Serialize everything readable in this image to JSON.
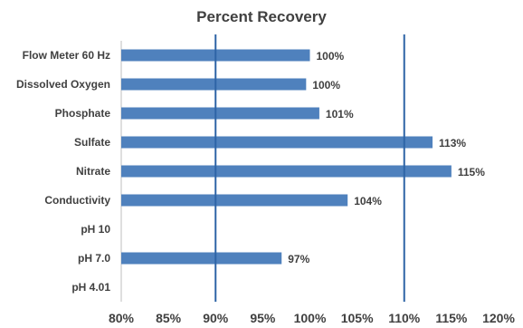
{
  "chart_data": {
    "type": "bar",
    "orientation": "horizontal",
    "title": "Percent Recovery",
    "categories": [
      "Flow Meter 60 Hz",
      "Dissolved Oxygen",
      "Phosphate",
      "Sulfate",
      "Nitrate",
      "Conductivity",
      "pH 10",
      "pH 7.0",
      "pH 4.01"
    ],
    "values": [
      100,
      99.6,
      101,
      113,
      115,
      104,
      null,
      97,
      null
    ],
    "data_labels": [
      "100%",
      "100%",
      "101%",
      "113%",
      "115%",
      "104%",
      "",
      "97%",
      ""
    ],
    "xlim": [
      80,
      120
    ],
    "x_ticks": [
      80,
      85,
      90,
      95,
      100,
      105,
      110,
      115,
      120
    ],
    "x_tick_labels": [
      "80%",
      "85%",
      "90%",
      "95%",
      "100%",
      "105%",
      "110%",
      "115%",
      "120%"
    ],
    "reference_lines": [
      90,
      110
    ],
    "grid": false,
    "legend": "none",
    "colors": {
      "bar": "#4F81BD",
      "reference_line": "#2E64A6",
      "axis": "#BFBFBF",
      "text": "#404040"
    }
  }
}
